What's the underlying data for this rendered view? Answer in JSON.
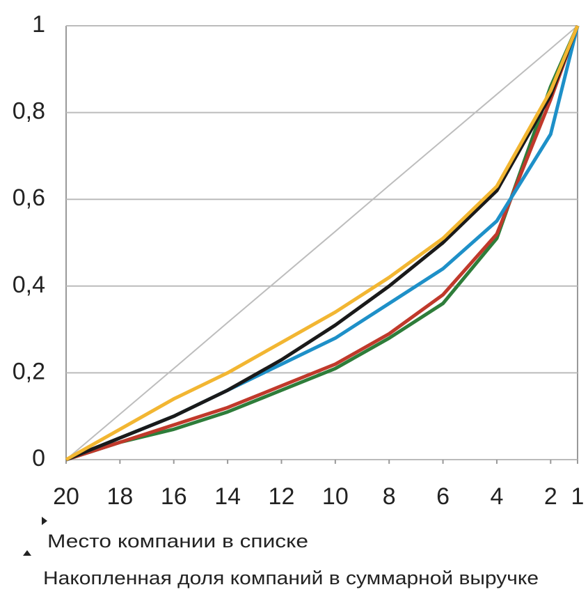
{
  "chart_data": {
    "type": "line",
    "x_label": "Место компании в списке",
    "y_label": "Накопленная доля компаний в суммарной выручке",
    "x": [
      20,
      18,
      16,
      14,
      12,
      10,
      8,
      6,
      4,
      2,
      1
    ],
    "xlim": [
      20,
      1
    ],
    "xticks": [
      20,
      18,
      16,
      14,
      12,
      10,
      8,
      6,
      4,
      2,
      1
    ],
    "ylim": [
      0,
      1
    ],
    "yticks": [
      0,
      {
        "value": 0.2,
        "label": "0,2"
      },
      {
        "value": 0.4,
        "label": "0,4"
      },
      {
        "value": 0.6,
        "label": "0,6"
      },
      {
        "value": 0.8,
        "label": "0,8"
      },
      1
    ],
    "grid": true,
    "series": [
      {
        "color": "#bdbdbd",
        "values": [
          0,
          0.105,
          0.21,
          0.316,
          0.421,
          0.526,
          0.632,
          0.737,
          0.842,
          0.947,
          1
        ]
      },
      {
        "color": "#2e7d3a",
        "values": [
          0,
          0.04,
          0.07,
          0.11,
          0.16,
          0.21,
          0.28,
          0.36,
          0.51,
          0.86,
          1
        ]
      },
      {
        "color": "#c0392b",
        "values": [
          0,
          0.04,
          0.08,
          0.12,
          0.17,
          0.22,
          0.29,
          0.38,
          0.52,
          0.83,
          1
        ]
      },
      {
        "color": "#1e90c8",
        "values": [
          0,
          0.05,
          0.1,
          0.16,
          0.22,
          0.28,
          0.36,
          0.44,
          0.55,
          0.75,
          1
        ]
      },
      {
        "color": "#1a1a1a",
        "values": [
          0,
          0.05,
          0.1,
          0.16,
          0.23,
          0.31,
          0.4,
          0.5,
          0.62,
          0.84,
          1
        ]
      },
      {
        "color": "#f2b632",
        "values": [
          0,
          0.07,
          0.14,
          0.2,
          0.27,
          0.34,
          0.42,
          0.51,
          0.63,
          0.85,
          1
        ]
      }
    ]
  }
}
